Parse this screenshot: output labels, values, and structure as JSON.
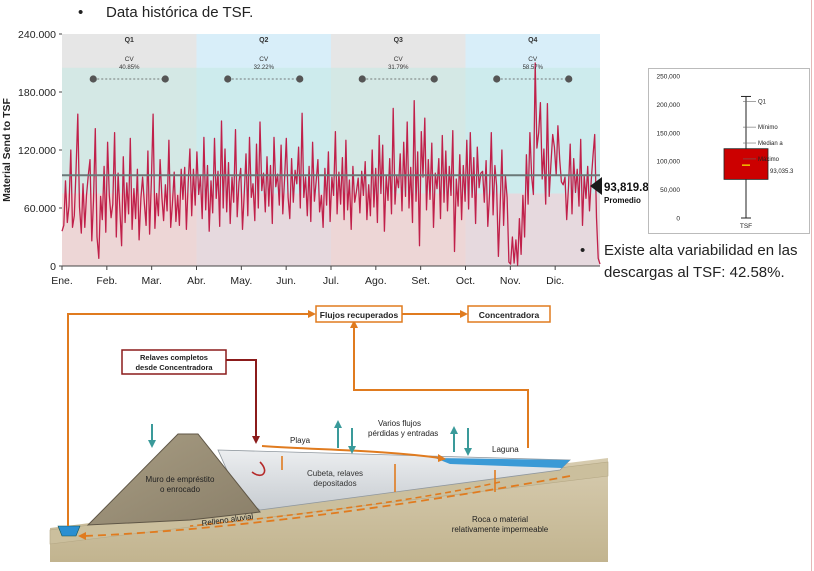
{
  "header": {
    "bullet": "•",
    "title": "Data histórica de TSF."
  },
  "chart_data": [
    {
      "type": "line",
      "ylabel": "Material Send to TSF",
      "ylim": [
        0,
        240000
      ],
      "yticks": [
        "0",
        "60.000",
        "120.000",
        "180.000",
        "240.000"
      ],
      "ytick_values": [
        0,
        60000,
        120000,
        180000,
        240000
      ],
      "months": [
        "Ene.",
        "Feb.",
        "Mar.",
        "Abr.",
        "May.",
        "Jun.",
        "Jul.",
        "Ago.",
        "Set.",
        "Oct.",
        "Nov.",
        "Dic."
      ],
      "quarters": [
        {
          "label": "Q1",
          "cv_label": "CV",
          "cv": "40.85%",
          "color": "#e6e6e6"
        },
        {
          "label": "Q2",
          "cv_label": "CV",
          "cv": "32.22%",
          "color": "#d8eef9"
        },
        {
          "label": "Q3",
          "cv_label": "CV",
          "cv": "31.79%",
          "color": "#e6e6e6"
        },
        {
          "label": "Q4",
          "cv_label": "CV",
          "cv": "58.57%",
          "color": "#d8eef9"
        }
      ],
      "bands": [
        {
          "from": 0,
          "to": 75000,
          "color": "#f3c9c9"
        },
        {
          "from": 75000,
          "to": 205000,
          "color": "#c4e9e4"
        }
      ],
      "average": 93819.8,
      "average_label": "93,819.8",
      "average_caption": "Promedio",
      "series": [
        {
          "color": "#c0204a",
          "days_per_point": 1,
          "values": [
            36000,
            42000,
            88000,
            45000,
            62000,
            120000,
            40000,
            52000,
            98000,
            157000,
            61000,
            34000,
            85000,
            40000,
            73000,
            94000,
            110000,
            26000,
            68000,
            142000,
            30000,
            8000,
            72000,
            48000,
            103000,
            35000,
            128000,
            73000,
            50000,
            64000,
            138000,
            30000,
            96000,
            60000,
            21000,
            113000,
            45000,
            86000,
            54000,
            132000,
            38000,
            80000,
            49000,
            100000,
            27000,
            70000,
            92000,
            64000,
            42000,
            119000,
            33000,
            89000,
            157000,
            39000,
            75000,
            52000,
            110000,
            71000,
            47000,
            84000,
            57000,
            130000,
            40000,
            64000,
            97000,
            46000,
            73000,
            42000,
            100000,
            69000,
            102000,
            38000,
            86000,
            121000,
            52000,
            100000,
            63000,
            118000,
            74000,
            93000,
            49000,
            133000,
            58000,
            104000,
            36000,
            88000,
            55000,
            132000,
            70000,
            98000,
            41000,
            150000,
            60000,
            121000,
            56000,
            107000,
            44000,
            92000,
            66000,
            141000,
            51000,
            87000,
            101000,
            38000,
            76000,
            116000,
            52000,
            133000,
            71000,
            85000,
            47000,
            126000,
            60000,
            149000,
            78000,
            96000,
            56000,
            113000,
            62000,
            104000,
            44000,
            133000,
            82000,
            95000,
            63000,
            125000,
            54000,
            91000,
            132000,
            71000,
            49000,
            111000,
            66000,
            99000,
            85000,
            123000,
            60000,
            158000,
            71000,
            92000,
            52000,
            103000,
            46000,
            128000,
            67000,
            87000,
            110000,
            56000,
            73000,
            40000,
            101000,
            63000,
            118000,
            46000,
            92000,
            73000,
            139000,
            54000,
            97000,
            64000,
            112000,
            48000,
            130000,
            58000,
            89000,
            38000,
            103000,
            66000,
            77000,
            91000,
            55000,
            98000,
            73000,
            108000,
            48000,
            84000,
            52000,
            120000,
            61000,
            101000,
            45000,
            135000,
            75000,
            125000,
            36000,
            94000,
            68000,
            111000,
            54000,
            163000,
            64000,
            93000,
            81000,
            116000,
            57000,
            128000,
            72000,
            149000,
            60000,
            102000,
            45000,
            171000,
            67000,
            118000,
            21000,
            139000,
            92000,
            153000,
            58000,
            110000,
            69000,
            127000,
            40000,
            96000,
            80000,
            111000,
            49000,
            135000,
            66000,
            119000,
            57000,
            103000,
            73000,
            140000,
            15000,
            90000,
            62000,
            115000,
            48000,
            104000,
            67000,
            130000,
            59000,
            138000,
            71000,
            112000,
            44000,
            123000,
            81000,
            96000,
            98000,
            66000,
            109000,
            41000,
            75000,
            138000,
            53000,
            104000,
            83000,
            10000,
            60000,
            120000,
            42000,
            93000,
            71000,
            4000,
            2000,
            30000,
            3000,
            27000,
            1000,
            49000,
            12000,
            73000,
            30000,
            115000,
            64000,
            138000,
            92000,
            74000,
            210000,
            122000,
            138000,
            169000,
            90000,
            121000,
            64000,
            168000,
            72000,
            105000,
            136000,
            123000,
            94000,
            145000,
            110000,
            87000,
            84000,
            92000,
            48000,
            82000,
            126000,
            54000,
            111000,
            76000,
            100000,
            62000,
            131000,
            42000,
            93000,
            70000,
            103000,
            57000,
            88000,
            114000,
            136000,
            50000,
            8000,
            2000
          ]
        }
      ]
    },
    {
      "type": "box",
      "ylim": [
        0,
        250000
      ],
      "yticks": [
        "0",
        "50,000",
        "100,000",
        "150,000",
        "200,000",
        "250,000"
      ],
      "ytick_values": [
        0,
        50000,
        100000,
        150000,
        200000,
        250000
      ],
      "category": "TSF",
      "min": 0,
      "q1": 68000,
      "median": 93035.3,
      "q3": 122000,
      "max": 214000,
      "median_label": "93,035.3",
      "legend": [
        "Q1",
        "Mínimo",
        "Median a",
        "Máximo"
      ],
      "box_color": "#cc0000"
    }
  ],
  "note": {
    "bullet": "•",
    "text": "Existe alta variabilidad en las descargas al TSF: 42.58%."
  },
  "diagram": {
    "flujos": "Flujos recuperados",
    "concentradora": "Concentradora",
    "relaves": "Relaves completos desde Concentradora",
    "playa": "Playa",
    "varios": "Varios flujos pérdidas y entradas",
    "laguna": "Laguna",
    "muro": "Muro de empréstito o enrocado",
    "cubeta": "Cubeta, relaves depositados",
    "relleno": "Relleno aluvial",
    "roca": "Roca o material relativamente impermeable"
  }
}
